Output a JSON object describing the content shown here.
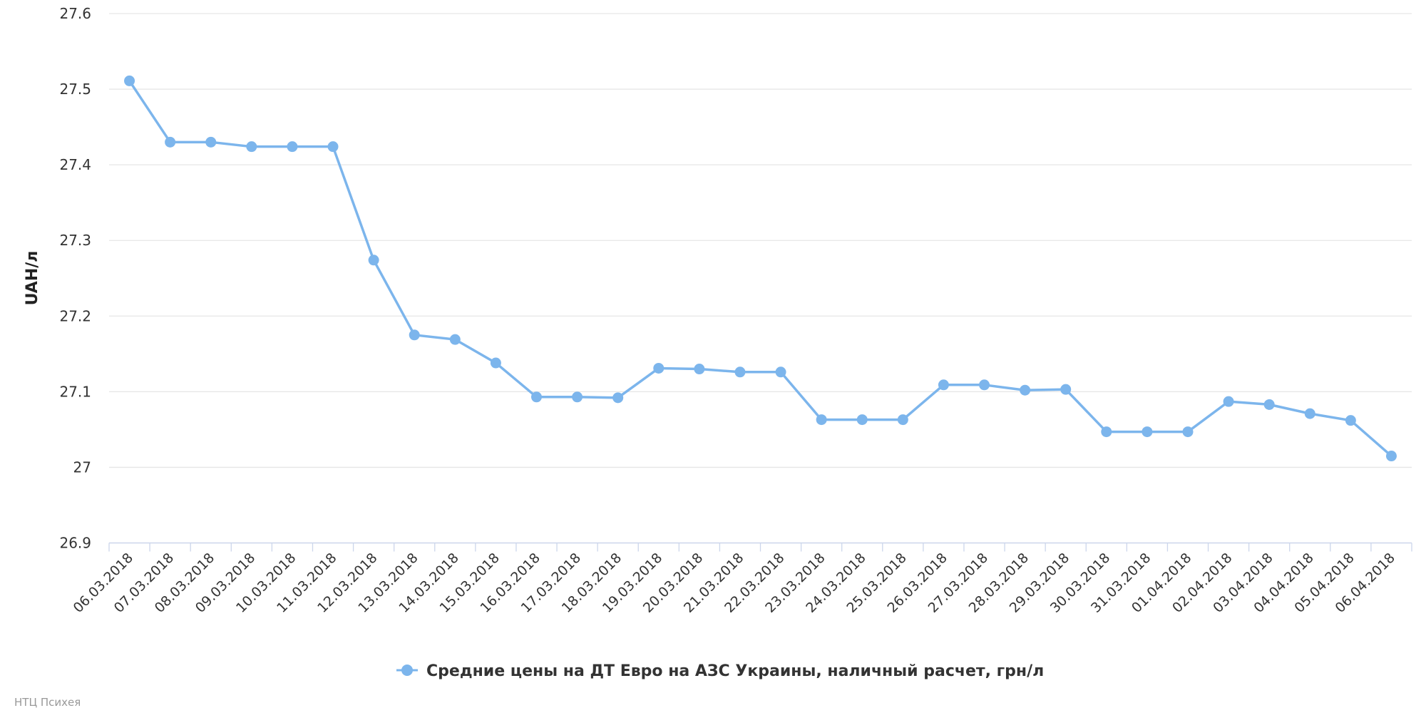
{
  "chart_data": {
    "type": "line",
    "title": "",
    "xlabel": "",
    "ylabel": "UAH/л",
    "ylim": [
      26.9,
      27.6
    ],
    "yticks": [
      "26.9",
      "27",
      "27.1",
      "27.2",
      "27.3",
      "27.4",
      "27.5",
      "27.6"
    ],
    "grid": true,
    "legend_position": "bottom",
    "color": "#7cb5ec",
    "categories": [
      "06.03.2018",
      "07.03.2018",
      "08.03.2018",
      "09.03.2018",
      "10.03.2018",
      "11.03.2018",
      "12.03.2018",
      "13.03.2018",
      "14.03.2018",
      "15.03.2018",
      "16.03.2018",
      "17.03.2018",
      "18.03.2018",
      "19.03.2018",
      "20.03.2018",
      "21.03.2018",
      "22.03.2018",
      "23.03.2018",
      "24.03.2018",
      "25.03.2018",
      "26.03.2018",
      "27.03.2018",
      "28.03.2018",
      "29.03.2018",
      "30.03.2018",
      "31.03.2018",
      "01.04.2018",
      "02.04.2018",
      "03.04.2018",
      "04.04.2018",
      "05.04.2018",
      "06.04.2018"
    ],
    "series": [
      {
        "name": "Средние цены на ДТ Евро на АЗС Украины, наличный расчет, грн/л",
        "values": [
          27.511,
          27.43,
          27.43,
          27.424,
          27.424,
          27.424,
          27.274,
          27.175,
          27.169,
          27.138,
          27.093,
          27.093,
          27.092,
          27.131,
          27.13,
          27.126,
          27.126,
          27.063,
          27.063,
          27.063,
          27.109,
          27.109,
          27.102,
          27.103,
          27.047,
          27.047,
          27.047,
          27.087,
          27.083,
          27.071,
          27.062,
          27.015
        ]
      }
    ]
  },
  "credit": "НТЦ Психея"
}
